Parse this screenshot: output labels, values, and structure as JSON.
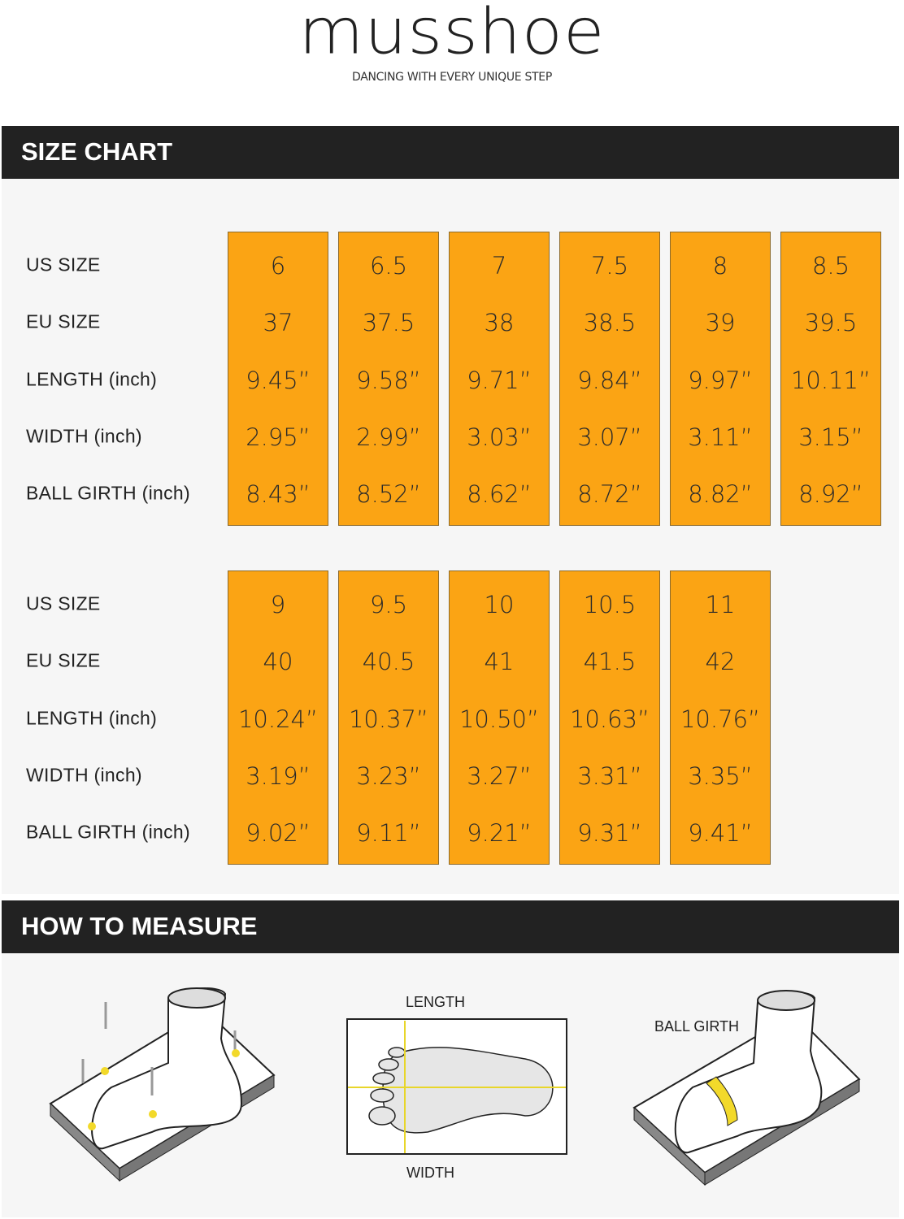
{
  "brand": {
    "logo": "musshoe",
    "tagline": "DANCING WITH EVERY UNIQUE STEP"
  },
  "size_chart": {
    "title": "SIZE CHART",
    "row_labels": [
      "US SIZE",
      "EU SIZE",
      "LENGTH (inch)",
      "WIDTH (inch)",
      "BALL GIRTH (inch)"
    ],
    "groups": [
      {
        "columns": [
          [
            "6",
            "37",
            "9.45”",
            "2.95”",
            "8.43”"
          ],
          [
            "6.5",
            "37.5",
            "9.58”",
            "2.99”",
            "8.52”"
          ],
          [
            "7",
            "38",
            "9.71”",
            "3.03”",
            "8.62”"
          ],
          [
            "7.5",
            "38.5",
            "9.84”",
            "3.07”",
            "8.72”"
          ],
          [
            "8",
            "39",
            "9.97”",
            "3.11”",
            "8.82”"
          ],
          [
            "8.5",
            "39.5",
            "10.11”",
            "3.15”",
            "8.92”"
          ]
        ]
      },
      {
        "columns": [
          [
            "9",
            "40",
            "10.24”",
            "3.19”",
            "9.02”"
          ],
          [
            "9.5",
            "40.5",
            "10.37”",
            "3.23”",
            "9.11”"
          ],
          [
            "10",
            "41",
            "10.50”",
            "3.27”",
            "9.21”"
          ],
          [
            "10.5",
            "41.5",
            "10.63”",
            "3.31”",
            "9.31”"
          ],
          [
            "11",
            "42",
            "10.76”",
            "3.35”",
            "9.41”"
          ]
        ]
      }
    ],
    "accent_color": "#fba414"
  },
  "how_to_measure": {
    "title": "HOW TO MEASURE",
    "length_label": "LENGTH",
    "width_label": "WIDTH",
    "ball_girth_label": "BALL GIRTH",
    "highlight_color": "#f2d92a"
  }
}
